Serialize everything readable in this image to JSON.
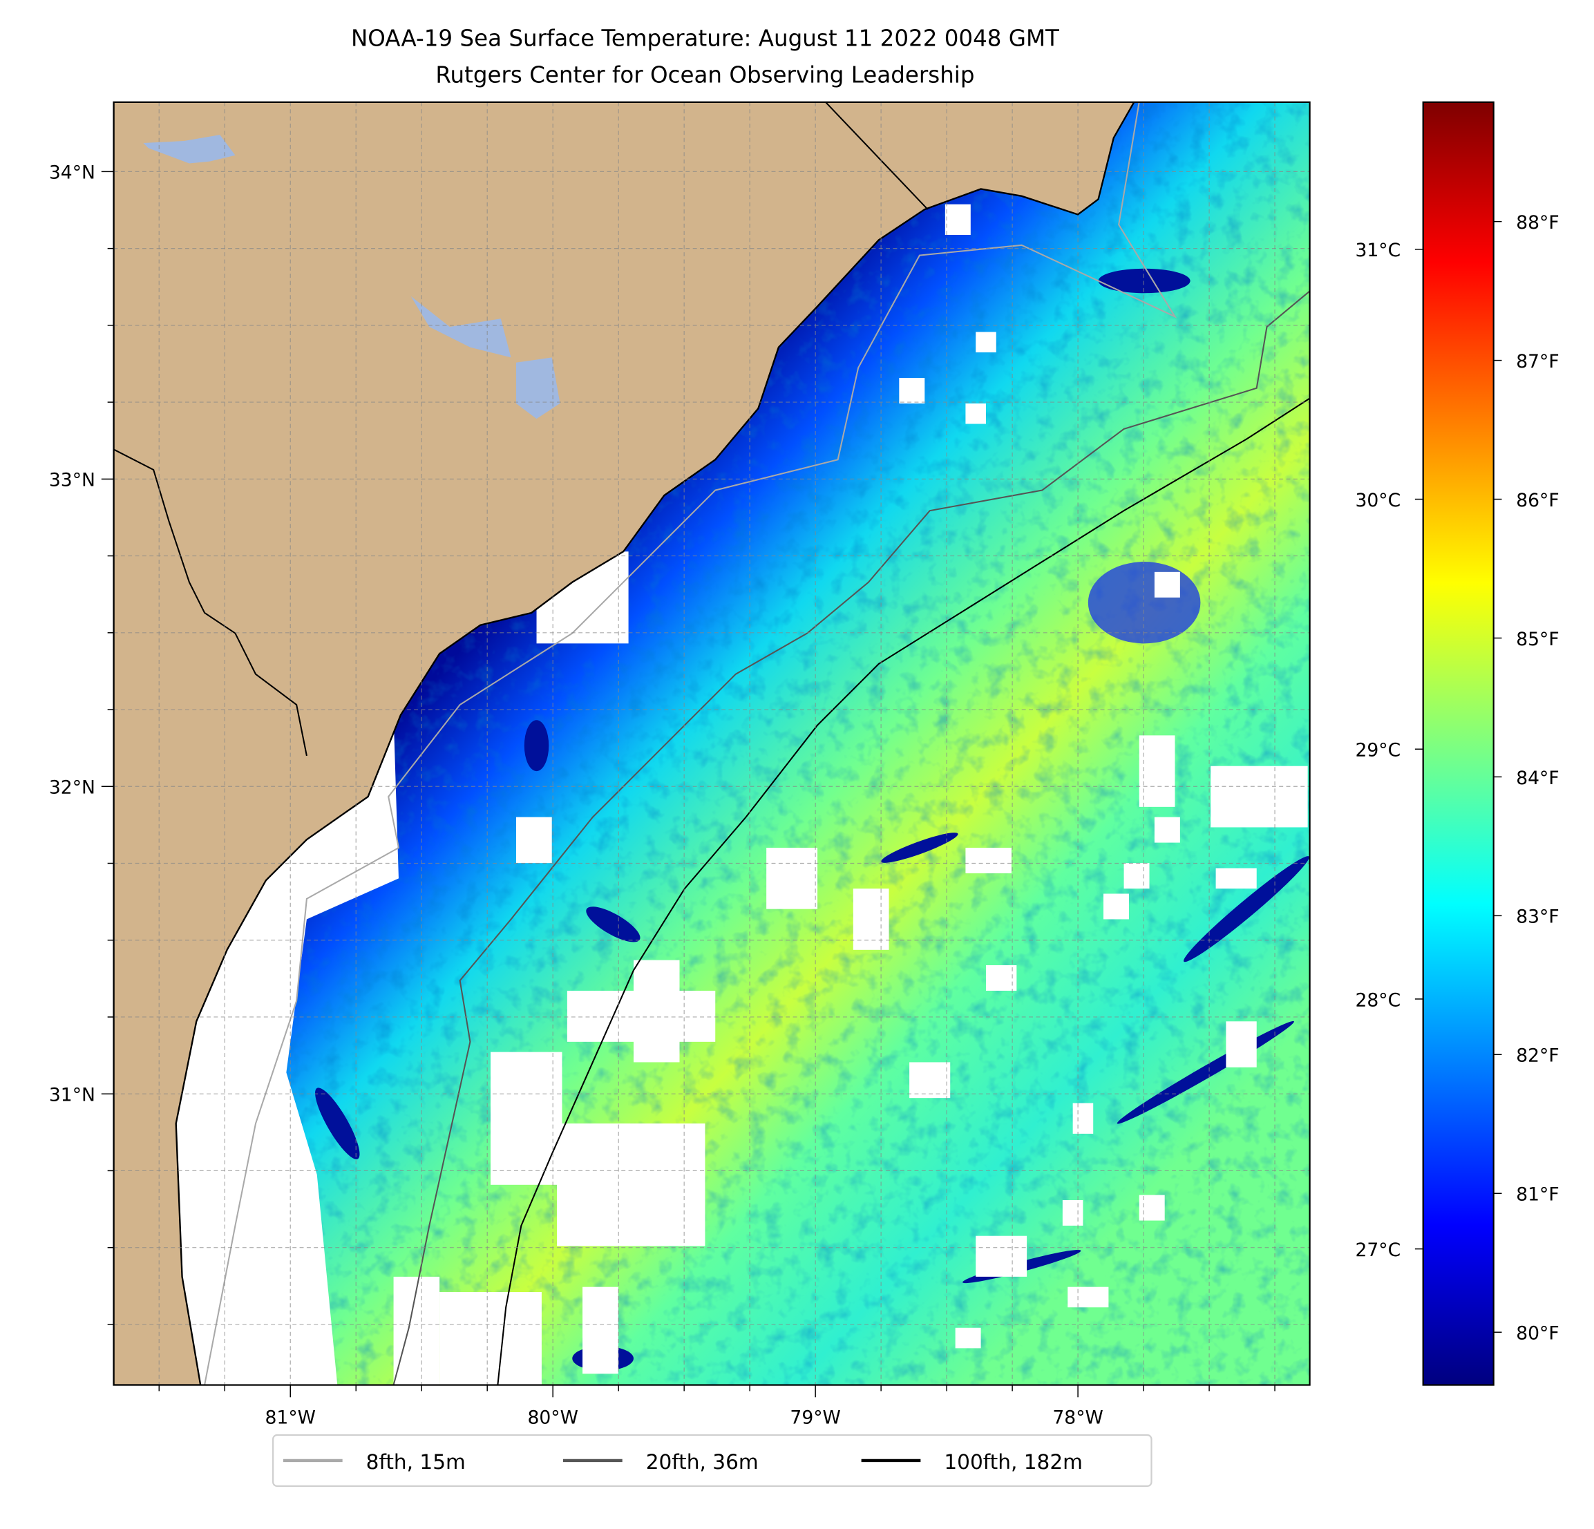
{
  "title": {
    "line1": "NOAA-19 Sea Surface Temperature: August 11 2022 0048 GMT",
    "line2": "Rutgers Center for Ocean Observing Leadership"
  },
  "map": {
    "lon_range": [
      -81.673,
      -77.117
    ],
    "lat_range": [
      30.053,
      34.226
    ],
    "grid_step_deg": 0.25,
    "lat_ticks": [
      {
        "value": 34,
        "label": "34°N"
      },
      {
        "value": 33,
        "label": "33°N"
      },
      {
        "value": 32,
        "label": "32°N"
      },
      {
        "value": 31,
        "label": "31°N"
      }
    ],
    "lon_ticks": [
      {
        "value": -81,
        "label": "81°W"
      },
      {
        "value": -80,
        "label": "80°W"
      },
      {
        "value": -79,
        "label": "79°W"
      },
      {
        "value": -78,
        "label": "78°W"
      }
    ],
    "colors": {
      "land": "#d2b48c",
      "lake": "#a0b8e0",
      "no_data": "#ffffff"
    }
  },
  "colorbar": {
    "colormap": "jet",
    "f_range": [
      79.62,
      88.86
    ],
    "f_ticks": [
      {
        "value": 88,
        "label": "88°F"
      },
      {
        "value": 87,
        "label": "87°F"
      },
      {
        "value": 86,
        "label": "86°F"
      },
      {
        "value": 85,
        "label": "85°F"
      },
      {
        "value": 84,
        "label": "84°F"
      },
      {
        "value": 83,
        "label": "83°F"
      },
      {
        "value": 82,
        "label": "82°F"
      },
      {
        "value": 81,
        "label": "81°F"
      },
      {
        "value": 80,
        "label": "80°F"
      }
    ],
    "c_ticks": [
      {
        "value": 31,
        "label": "31°C"
      },
      {
        "value": 30,
        "label": "30°C"
      },
      {
        "value": 29,
        "label": "29°C"
      },
      {
        "value": 28,
        "label": "28°C"
      },
      {
        "value": 27,
        "label": "27°C"
      }
    ]
  },
  "legend": {
    "items": [
      {
        "label": "8fth, 15m",
        "color": "#a9a9a9"
      },
      {
        "label": "20fth, 36m",
        "color": "#555555"
      },
      {
        "label": "100fth, 182m",
        "color": "#000000"
      }
    ]
  }
}
